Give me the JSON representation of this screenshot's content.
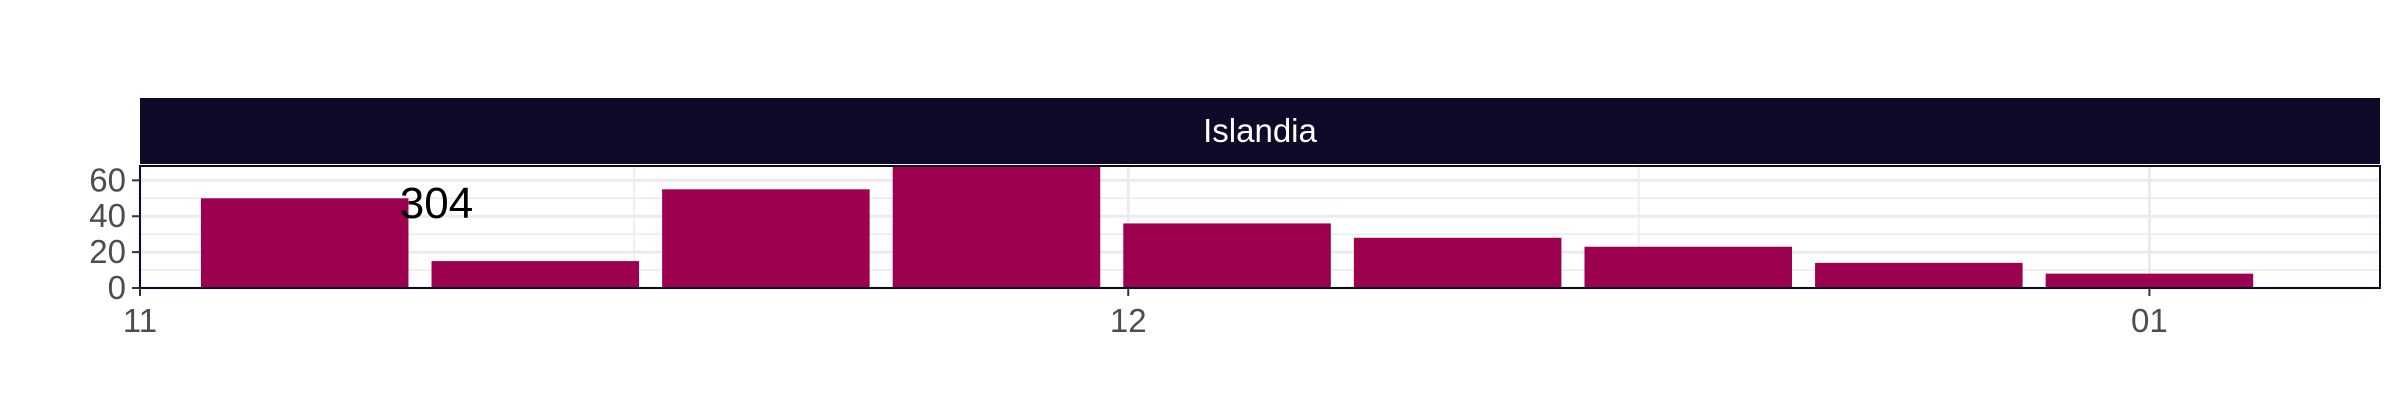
{
  "chart_data": {
    "type": "bar",
    "facet_label": "Islandia",
    "x": [
      "2020-11-06",
      "2020-11-13",
      "2020-11-20",
      "2020-11-27",
      "2020-12-04",
      "2020-12-11",
      "2020-12-18",
      "2020-12-25",
      "2021-01-01"
    ],
    "values": [
      50,
      15,
      55,
      68,
      36,
      28,
      23,
      14,
      8
    ],
    "x_ticks": [
      "11",
      "12",
      "01"
    ],
    "x_tick_dates": [
      "2020-11-01",
      "2020-12-01",
      "2021-01-01"
    ],
    "xlim": [
      "2020-11-01",
      "2021-01-08"
    ],
    "y_ticks": [
      0,
      20,
      40,
      60
    ],
    "ylim": [
      0,
      68
    ],
    "annotation": "304",
    "annotation_x": "2020-11-10",
    "annotation_y": 48,
    "xlabel": "",
    "ylabel": "",
    "grid": true,
    "colors": {
      "bar": "#9e0050",
      "strip": "#0e0a2a",
      "strip_text": "#ffffff",
      "grid": "#ebebeb",
      "panel_border": "#0e0a2a",
      "tick_text": "#4d4d4d"
    }
  }
}
